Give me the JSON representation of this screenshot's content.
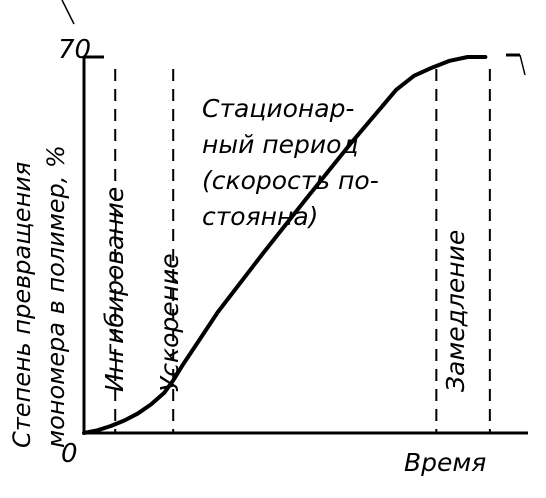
{
  "chart_data": {
    "type": "line",
    "title": "",
    "xlabel": "Время",
    "ylabel_lines": [
      "Степень превращения",
      "мономера в полимер, %"
    ],
    "y_tick_top": "70",
    "origin_label": "0",
    "ylim": [
      0,
      70
    ],
    "xlim": [
      0,
      100
    ],
    "grid": false,
    "series": [
      {
        "x": [
          0,
          3,
          6,
          9,
          12,
          15,
          18,
          20,
          22,
          26,
          30,
          40,
          50,
          60,
          70,
          74,
          78,
          82,
          86,
          88,
          90
        ],
        "y": [
          0,
          0.5,
          1.3,
          2.3,
          3.6,
          5.3,
          7.5,
          9.8,
          12.5,
          17.5,
          22.5,
          33.3,
          43.8,
          54.1,
          63.9,
          66.5,
          68.0,
          69.3,
          70.0,
          70.0,
          70.0
        ]
      }
    ],
    "periods": [
      {
        "id": "inhibition",
        "label": "Ингибирование",
        "x_start": 0,
        "x_end": 7
      },
      {
        "id": "acceleration",
        "label": "Ускорение",
        "x_start": 7,
        "x_end": 20
      },
      {
        "id": "stationary",
        "label_lines": [
          "Стационар-",
          "ный период",
          "(скорость по-",
          "стоянна)"
        ],
        "x_start": 20,
        "x_end": 79
      },
      {
        "id": "deceleration",
        "label": "Замедление",
        "x_start": 79,
        "x_end": 91
      }
    ],
    "boundaries_x": [
      7,
      20,
      79,
      91
    ]
  }
}
